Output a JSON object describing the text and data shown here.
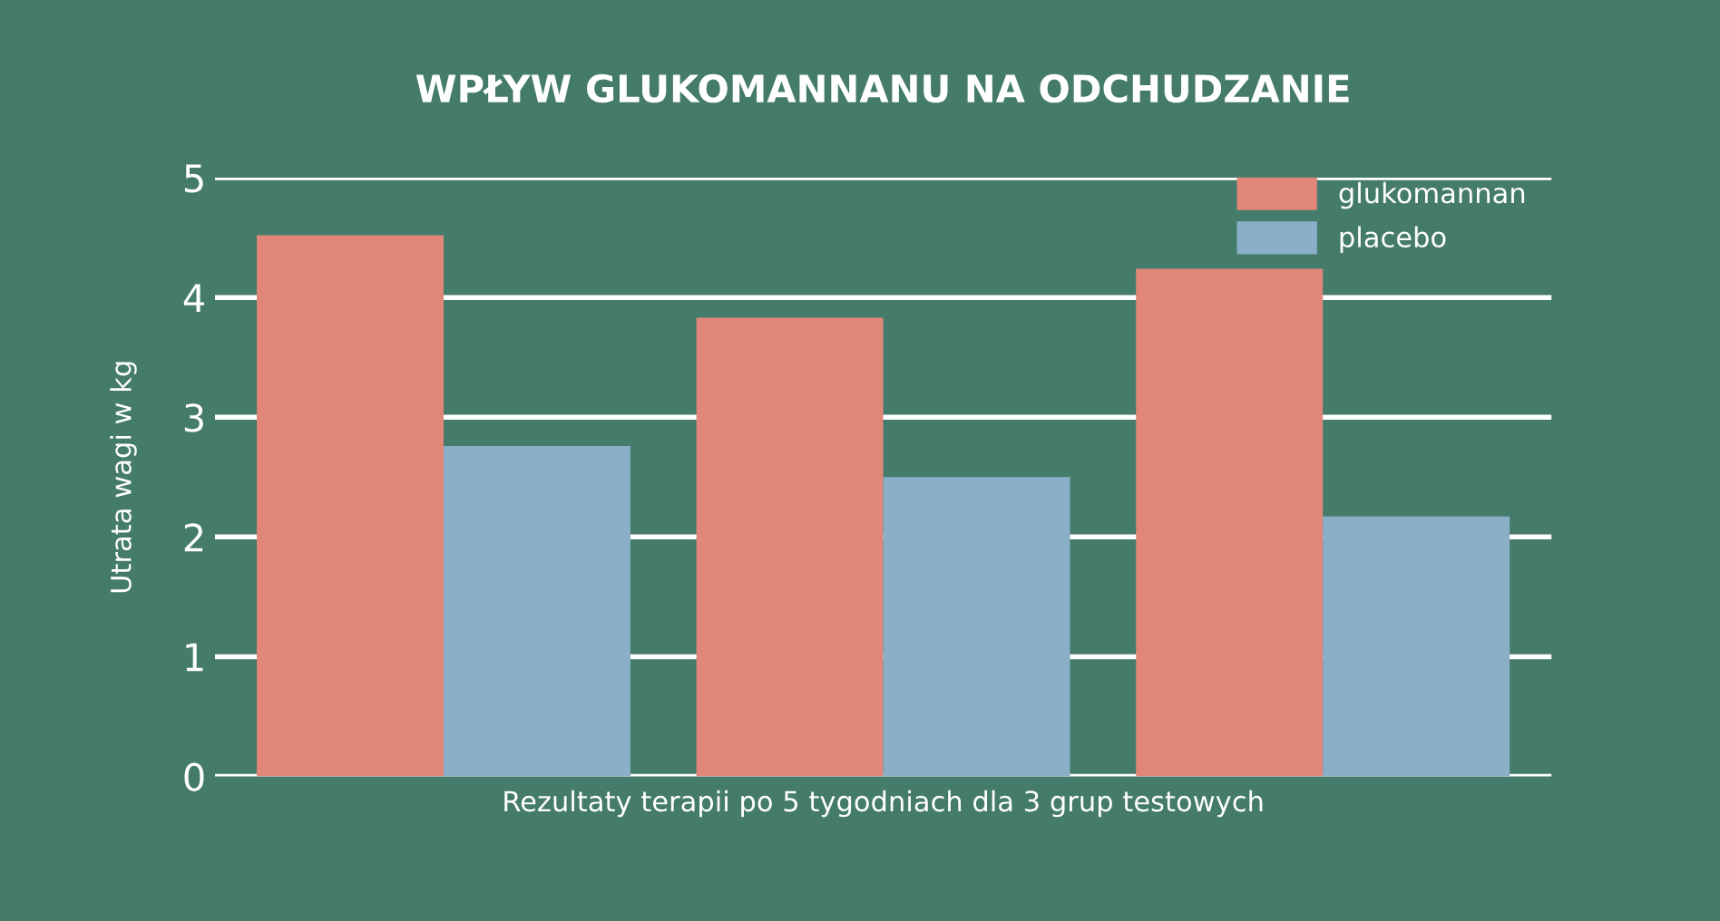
{
  "chart_data": {
    "type": "bar",
    "title": "WPŁYW GLUKOMANNANU NA ODCHUDZANIE",
    "xlabel": "Rezultaty terapii po 5 tygodniach dla 3 grup testowych",
    "ylabel": "Utrata wagi w kg",
    "categories": [
      null,
      null,
      null
    ],
    "series": [
      {
        "name": "glukomannan",
        "color": "#e0877a",
        "values": [
          4.52,
          3.83,
          4.24
        ]
      },
      {
        "name": "placebo",
        "color": "#8aafc6",
        "values": [
          2.76,
          2.5,
          2.17
        ]
      }
    ],
    "ylim": [
      0,
      5
    ],
    "yticks": [
      0,
      1,
      2,
      3,
      4,
      5
    ],
    "grid": "y",
    "legend": "top right"
  }
}
